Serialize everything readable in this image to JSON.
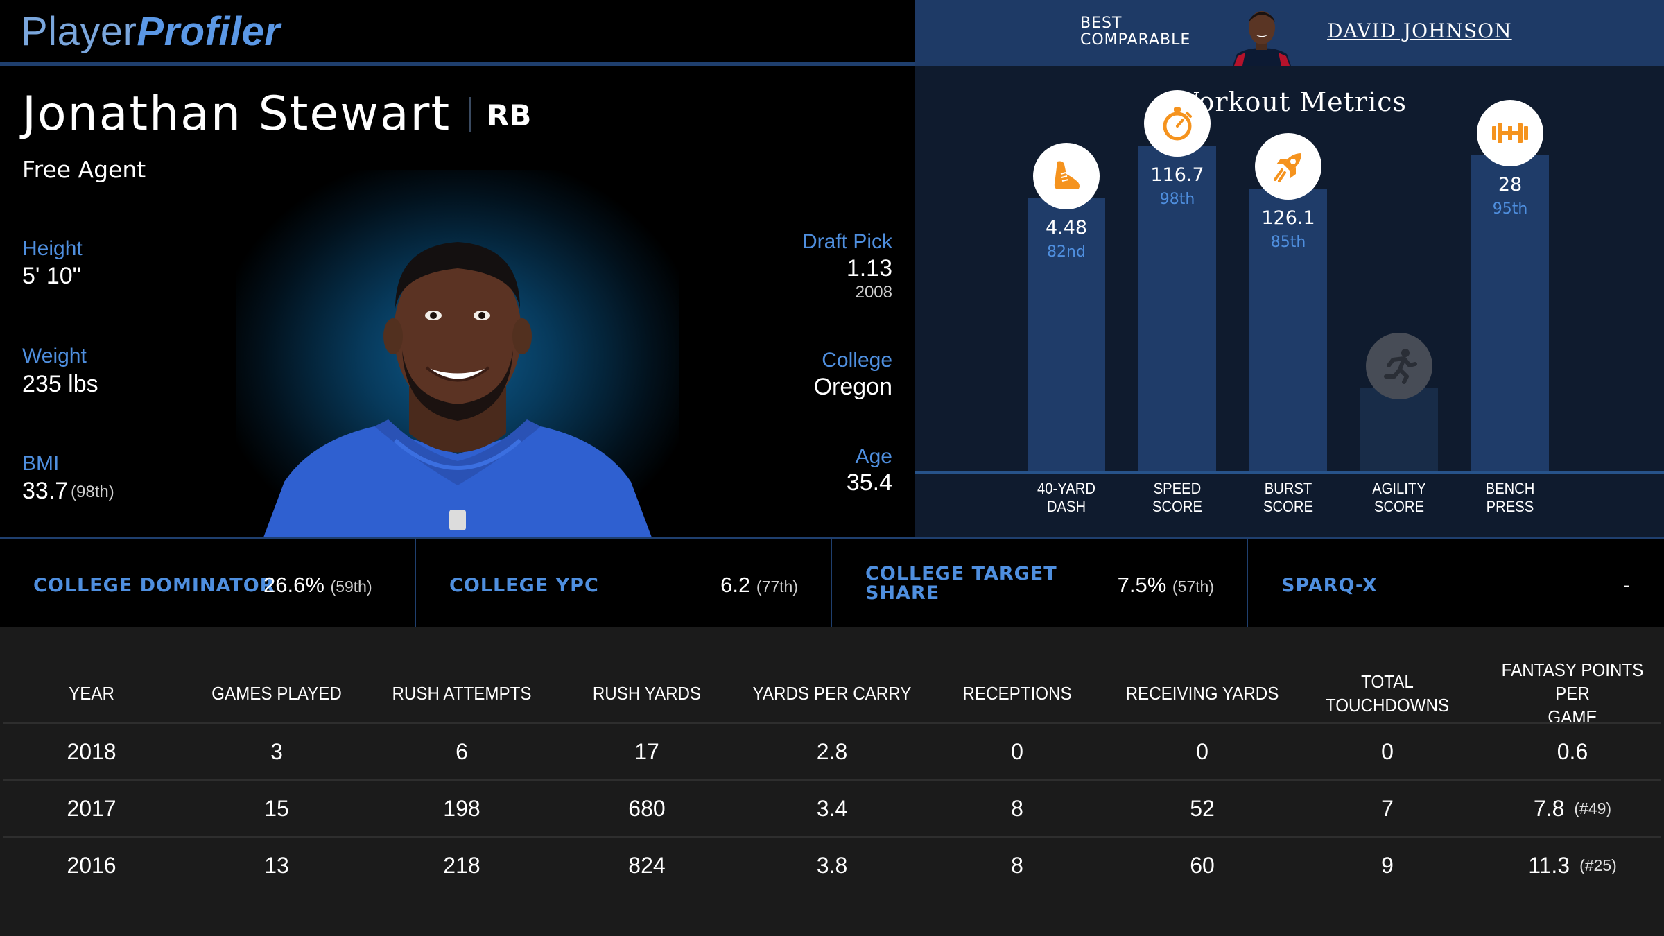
{
  "header": {
    "logo_part1": "Player",
    "logo_part2": "Profiler",
    "best_comparable_label": "BEST COMPARABLE",
    "best_comparable_name": "DAVID JOHNSON"
  },
  "profile": {
    "name": "Jonathan Stewart",
    "position": "RB",
    "team": "Free Agent",
    "height_label": "Height",
    "height_value": "5' 10\"",
    "weight_label": "Weight",
    "weight_value": "235 lbs",
    "bmi_label": "BMI",
    "bmi_value": "33.7",
    "bmi_pct": "(98th)",
    "draft_label": "Draft Pick",
    "draft_value": "1.13",
    "draft_year": "2008",
    "college_label": "College",
    "college_value": "Oregon",
    "age_label": "Age",
    "age_value": "35.4"
  },
  "workout": {
    "title": "Workout Metrics",
    "items": [
      {
        "label_line1": "40-YARD",
        "label_line2": "DASH",
        "value": "4.48",
        "percentile": "82nd",
        "pct_num": 82,
        "icon": "shoe-icon",
        "available": true
      },
      {
        "label_line1": "SPEED",
        "label_line2": "SCORE",
        "value": "116.7",
        "percentile": "98th",
        "pct_num": 98,
        "icon": "stopwatch-icon",
        "available": true
      },
      {
        "label_line1": "BURST",
        "label_line2": "SCORE",
        "value": "126.1",
        "percentile": "85th",
        "pct_num": 85,
        "icon": "rocket-icon",
        "available": true
      },
      {
        "label_line1": "AGILITY",
        "label_line2": "SCORE",
        "value": "",
        "percentile": "",
        "pct_num": 25,
        "icon": "runner-icon",
        "available": false
      },
      {
        "label_line1": "BENCH",
        "label_line2": "PRESS",
        "value": "28",
        "percentile": "95th",
        "pct_num": 95,
        "icon": "dumbbell-icon",
        "available": true
      }
    ],
    "colors": {
      "icon_orange": "#f5931e",
      "bar": "#1f3c69",
      "percentile_text": "#4f8fdf"
    }
  },
  "college_metrics": [
    {
      "label_line1": "COLLEGE DOMINATOR",
      "label_line2": "",
      "value": "26.6%",
      "pct": "(59th)"
    },
    {
      "label_line1": "COLLEGE YPC",
      "label_line2": "",
      "value": "6.2",
      "pct": "(77th)"
    },
    {
      "label_line1": "COLLEGE TARGET",
      "label_line2": "SHARE",
      "value": "7.5%",
      "pct": "(57th)"
    },
    {
      "label_line1": "SPARQ-X",
      "label_line2": "",
      "value": "-",
      "pct": ""
    }
  ],
  "stats_table": {
    "headers": [
      {
        "line1": "YEAR",
        "line2": ""
      },
      {
        "line1": "GAMES PLAYED",
        "line2": ""
      },
      {
        "line1": "RUSH ATTEMPTS",
        "line2": ""
      },
      {
        "line1": "RUSH YARDS",
        "line2": ""
      },
      {
        "line1": "YARDS PER CARRY",
        "line2": ""
      },
      {
        "line1": "RECEPTIONS",
        "line2": ""
      },
      {
        "line1": "RECEIVING YARDS",
        "line2": ""
      },
      {
        "line1": "TOTAL TOUCHDOWNS",
        "line2": ""
      },
      {
        "line1": "FANTASY POINTS PER",
        "line2": "GAME"
      }
    ],
    "rows": [
      {
        "year": "2018",
        "games": "3",
        "rush_att": "6",
        "rush_yds": "17",
        "ypc": "2.8",
        "rec": "0",
        "rec_yds": "0",
        "td": "0",
        "fppg": "0.6",
        "fppg_rank": ""
      },
      {
        "year": "2017",
        "games": "15",
        "rush_att": "198",
        "rush_yds": "680",
        "ypc": "3.4",
        "rec": "8",
        "rec_yds": "52",
        "td": "7",
        "fppg": "7.8",
        "fppg_rank": "(#49)"
      },
      {
        "year": "2016",
        "games": "13",
        "rush_att": "218",
        "rush_yds": "824",
        "ypc": "3.8",
        "rec": "8",
        "rec_yds": "60",
        "td": "9",
        "fppg": "11.3",
        "fppg_rank": "(#25)"
      }
    ]
  }
}
